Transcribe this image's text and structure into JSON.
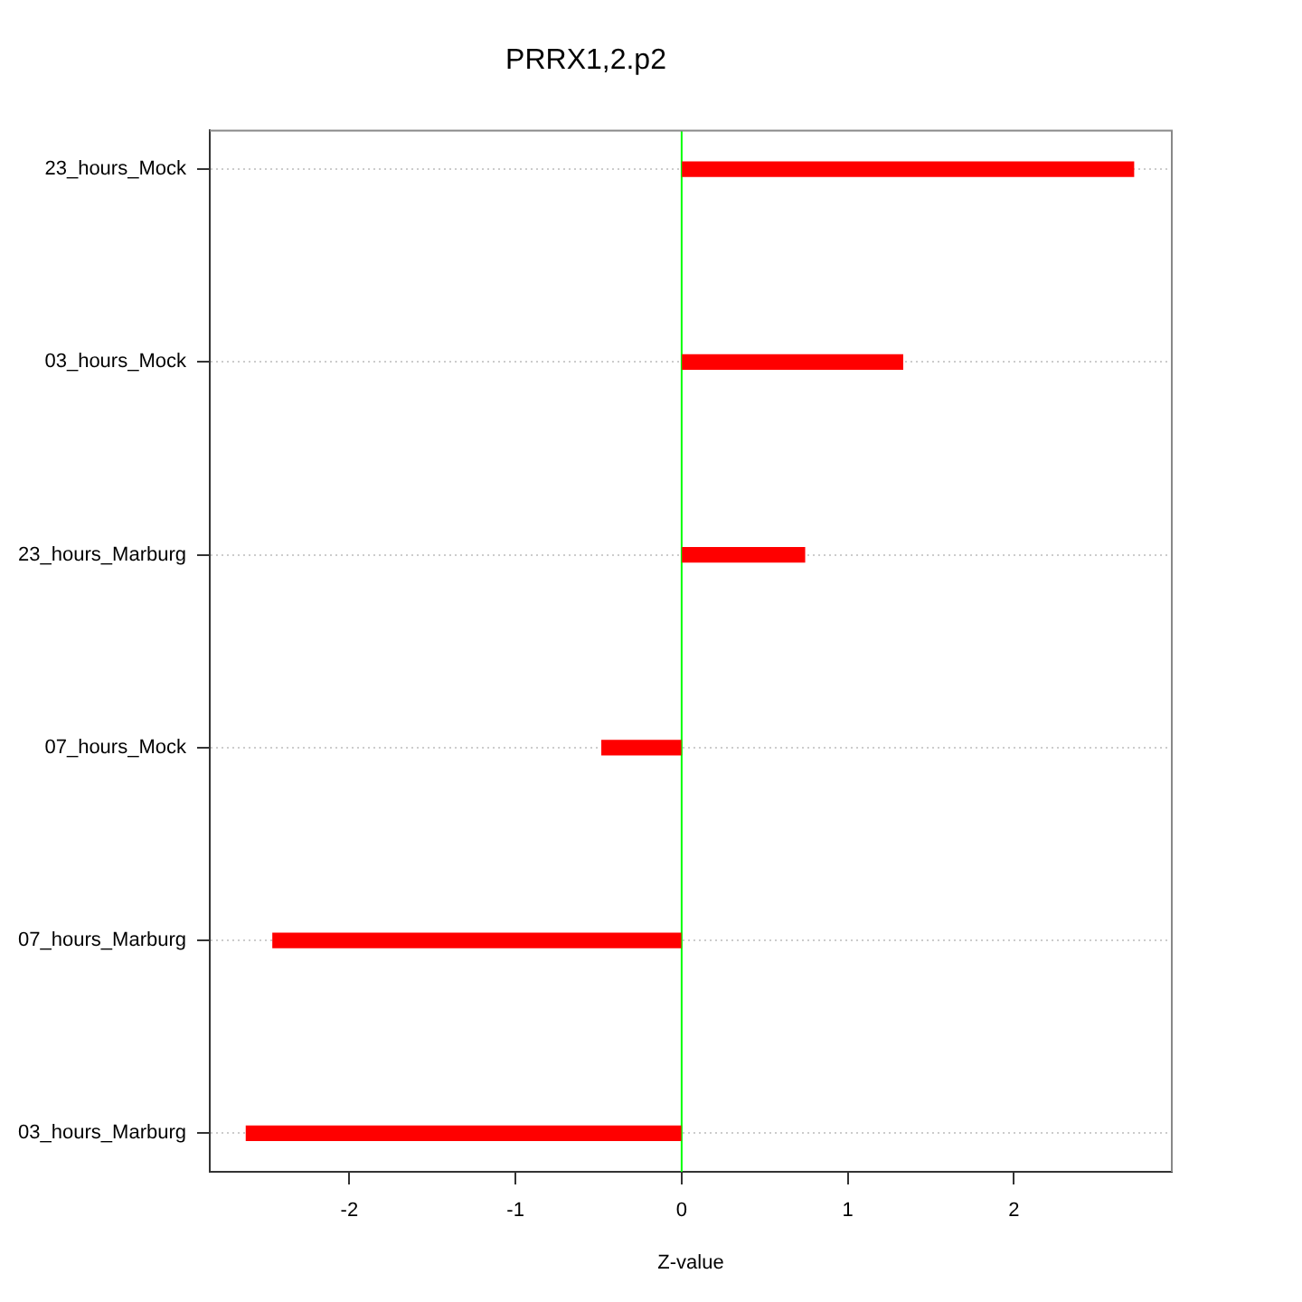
{
  "chart_data": {
    "type": "bar",
    "orientation": "horizontal",
    "title": "PRRX1,2.p2",
    "xlabel": "Z-value",
    "categories": [
      "23_hours_Mock",
      "03_hours_Mock",
      "23_hours_Marburg",
      "07_hours_Mock",
      "07_hours_Marburg",
      "03_hours_Marburg"
    ],
    "values": [
      2.72,
      1.33,
      0.74,
      -0.48,
      -2.46,
      -2.62
    ],
    "color": "#ff0000",
    "xlim": [
      -2.84,
      2.95
    ],
    "xticks": [
      -2,
      -1,
      0,
      1,
      2
    ],
    "grid": "y",
    "ref_lines": [
      {
        "axis": "x",
        "value": 0,
        "color": "#00ff00"
      }
    ]
  }
}
